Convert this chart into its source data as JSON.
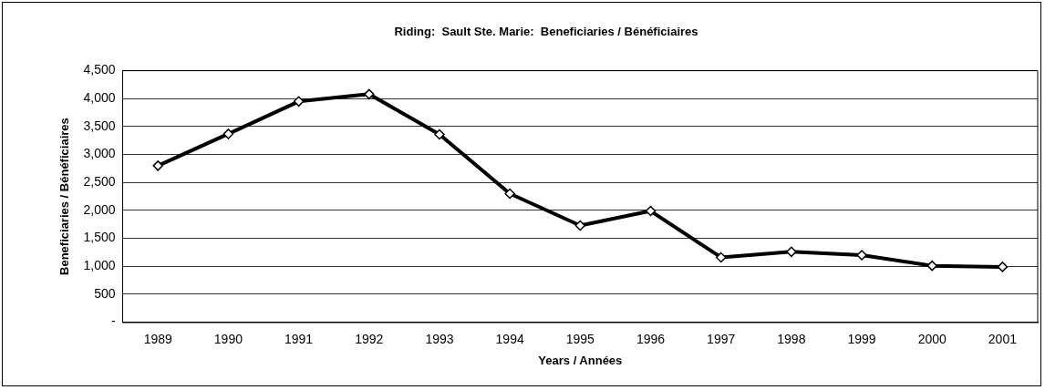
{
  "chart_data": {
    "type": "line",
    "title": "Riding:  Sault Ste. Marie:  Beneficiaries / Bénéficiaires",
    "xlabel": "Years / Années",
    "ylabel": "Beneficiaries / Bénéficiaires",
    "categories": [
      "1989",
      "1990",
      "1991",
      "1992",
      "1993",
      "1994",
      "1995",
      "1996",
      "1997",
      "1998",
      "1999",
      "2000",
      "2001"
    ],
    "series": [
      {
        "color": "#000000",
        "values": [
          2800,
          3370,
          3950,
          4080,
          3360,
          2300,
          1730,
          1990,
          1160,
          1260,
          1200,
          1010,
          990
        ]
      }
    ],
    "ylim": [
      0,
      4500
    ],
    "yticks": [
      {
        "value": 0,
        "label": "-"
      },
      {
        "value": 500,
        "label": "500"
      },
      {
        "value": 1000,
        "label": "1,000"
      },
      {
        "value": 1500,
        "label": "1,500"
      },
      {
        "value": 2000,
        "label": "2,000"
      },
      {
        "value": 2500,
        "label": "2,500"
      },
      {
        "value": 3000,
        "label": "3,000"
      },
      {
        "value": 3500,
        "label": "3,500"
      },
      {
        "value": 4000,
        "label": "4,000"
      },
      {
        "value": 4500,
        "label": "4,500"
      }
    ],
    "grid": "y",
    "legend": false,
    "marker": "diamond",
    "line_style": "solid"
  }
}
